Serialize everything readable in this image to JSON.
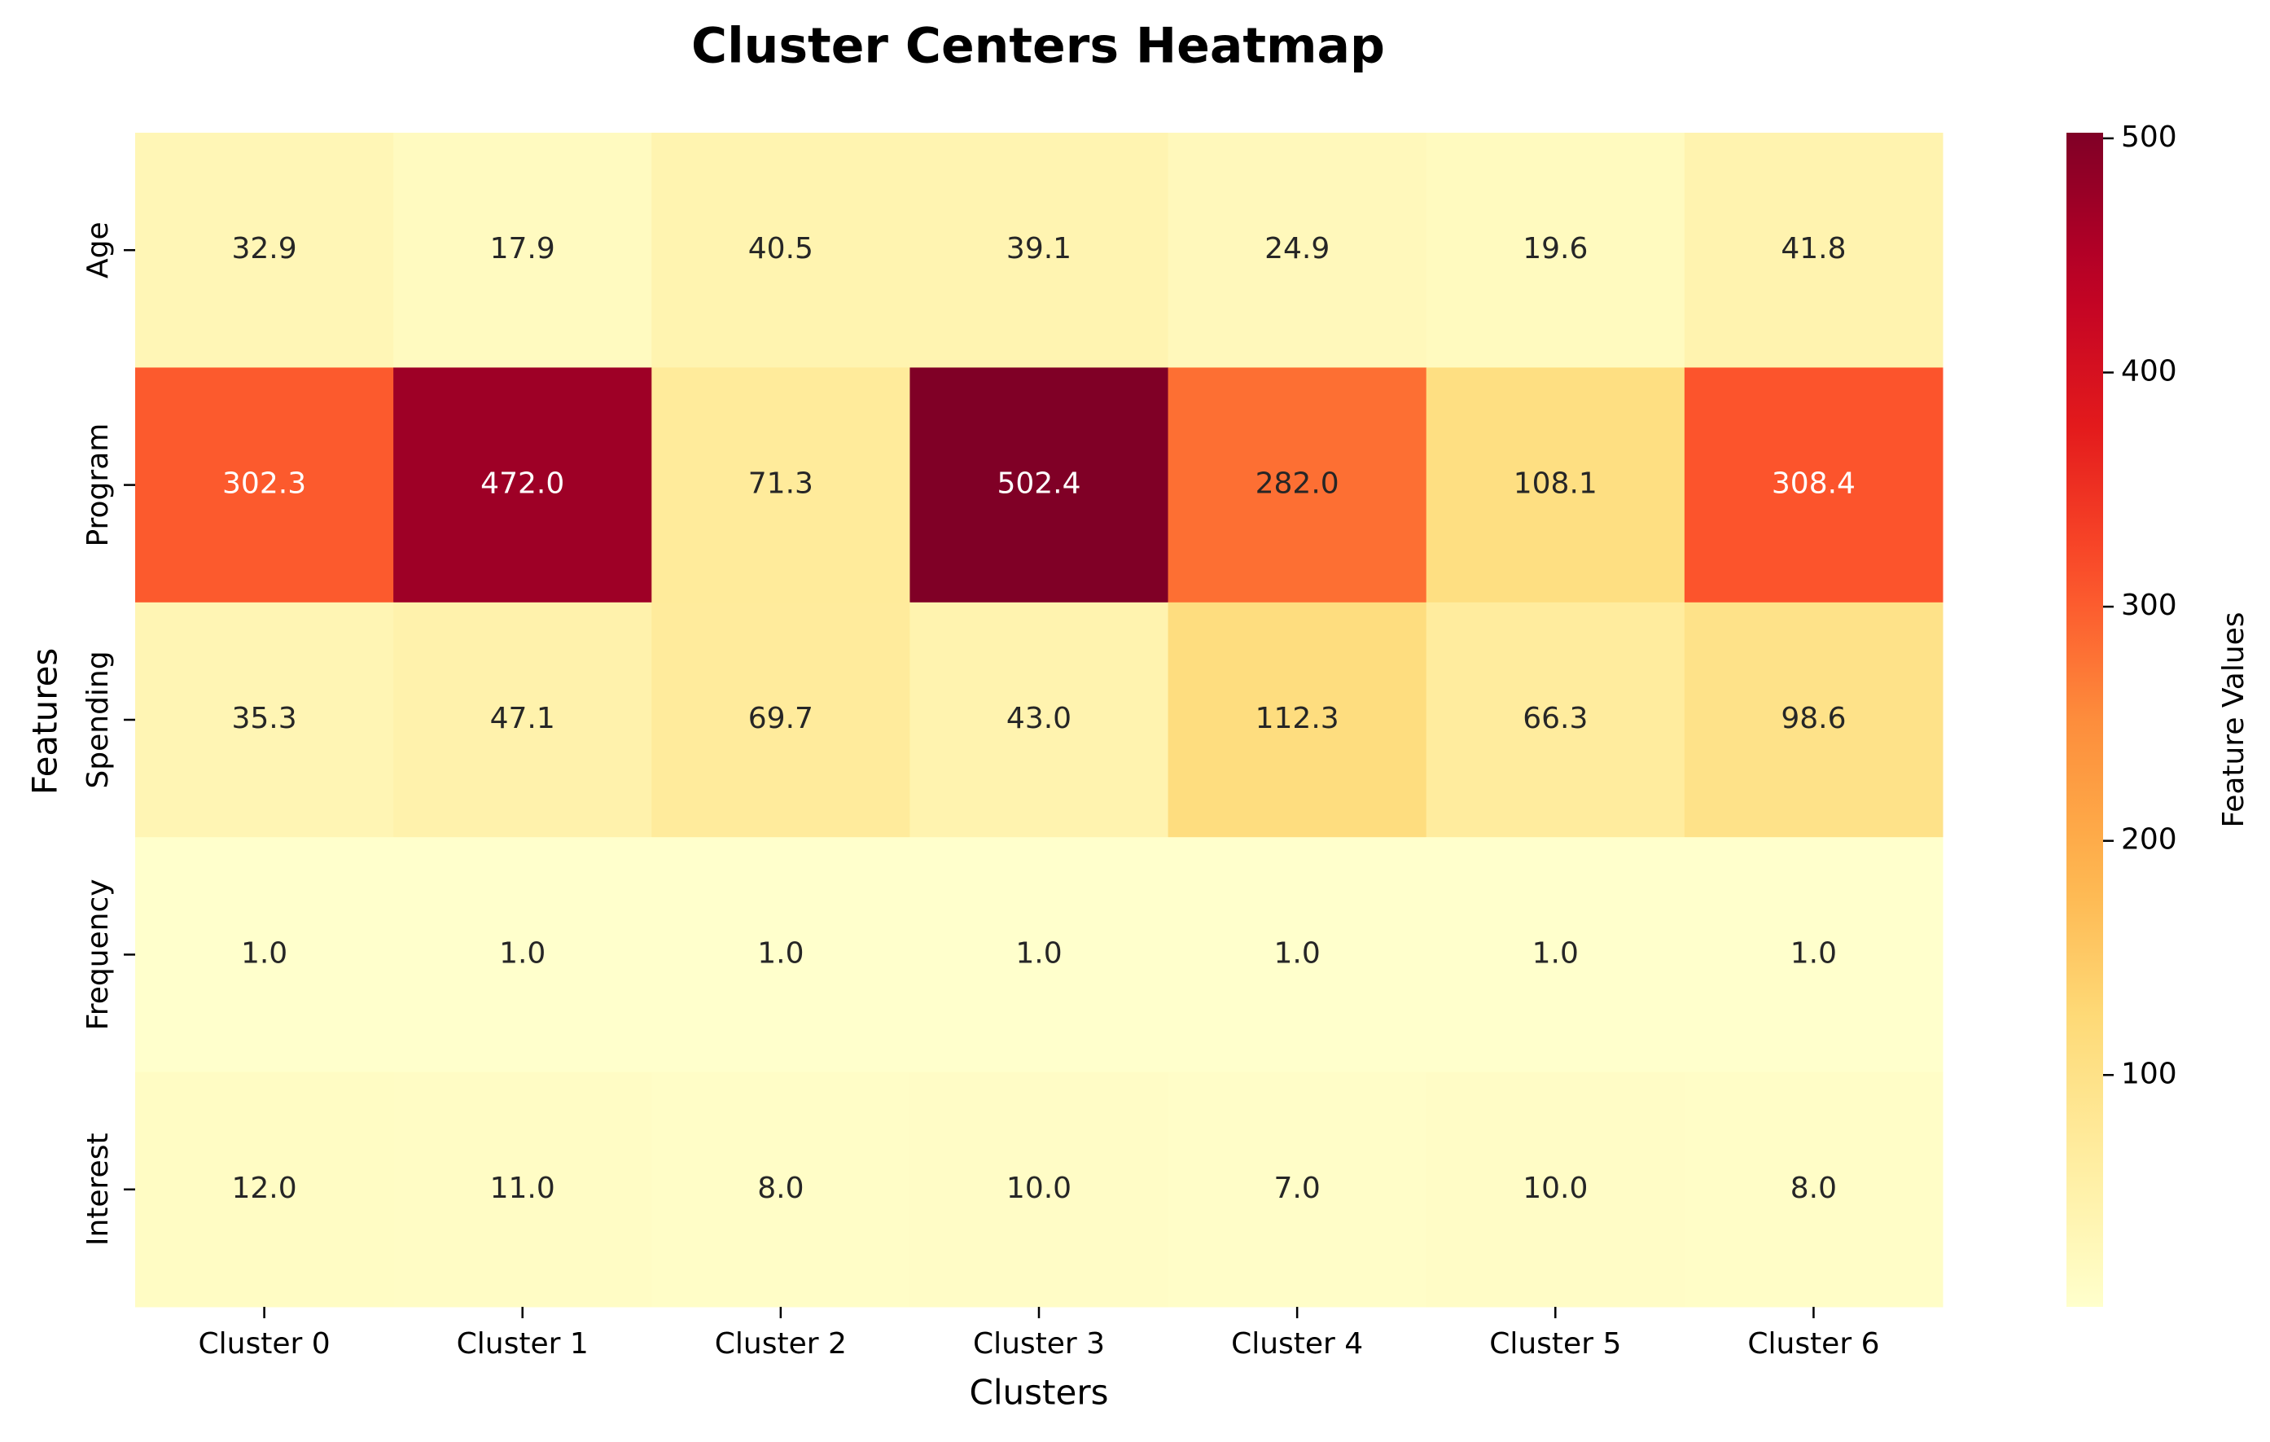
{
  "chart_data": {
    "type": "heatmap",
    "title": "Cluster Centers Heatmap",
    "xlabel": "Clusters",
    "ylabel": "Features",
    "x_categories": [
      "Cluster 0",
      "Cluster 1",
      "Cluster 2",
      "Cluster 3",
      "Cluster 4",
      "Cluster 5",
      "Cluster 6"
    ],
    "y_categories": [
      "Age",
      "Program",
      "Spending",
      "Frequency",
      "Interest"
    ],
    "values": [
      [
        32.9,
        17.9,
        40.5,
        39.1,
        24.9,
        19.6,
        41.8
      ],
      [
        302.3,
        472.0,
        71.3,
        502.4,
        282.0,
        108.1,
        308.4
      ],
      [
        35.3,
        47.1,
        69.7,
        43.0,
        112.3,
        66.3,
        98.6
      ],
      [
        1.0,
        1.0,
        1.0,
        1.0,
        1.0,
        1.0,
        1.0
      ],
      [
        12.0,
        11.0,
        8.0,
        10.0,
        7.0,
        10.0,
        8.0
      ]
    ],
    "colorscale": "YlOrRd",
    "colorbar": {
      "label": "Feature Values",
      "vmin": 1.0,
      "vmax": 502.4,
      "ticks": [
        100,
        200,
        300,
        400,
        500
      ]
    },
    "annotations_format": "0.1f",
    "grid": false
  }
}
